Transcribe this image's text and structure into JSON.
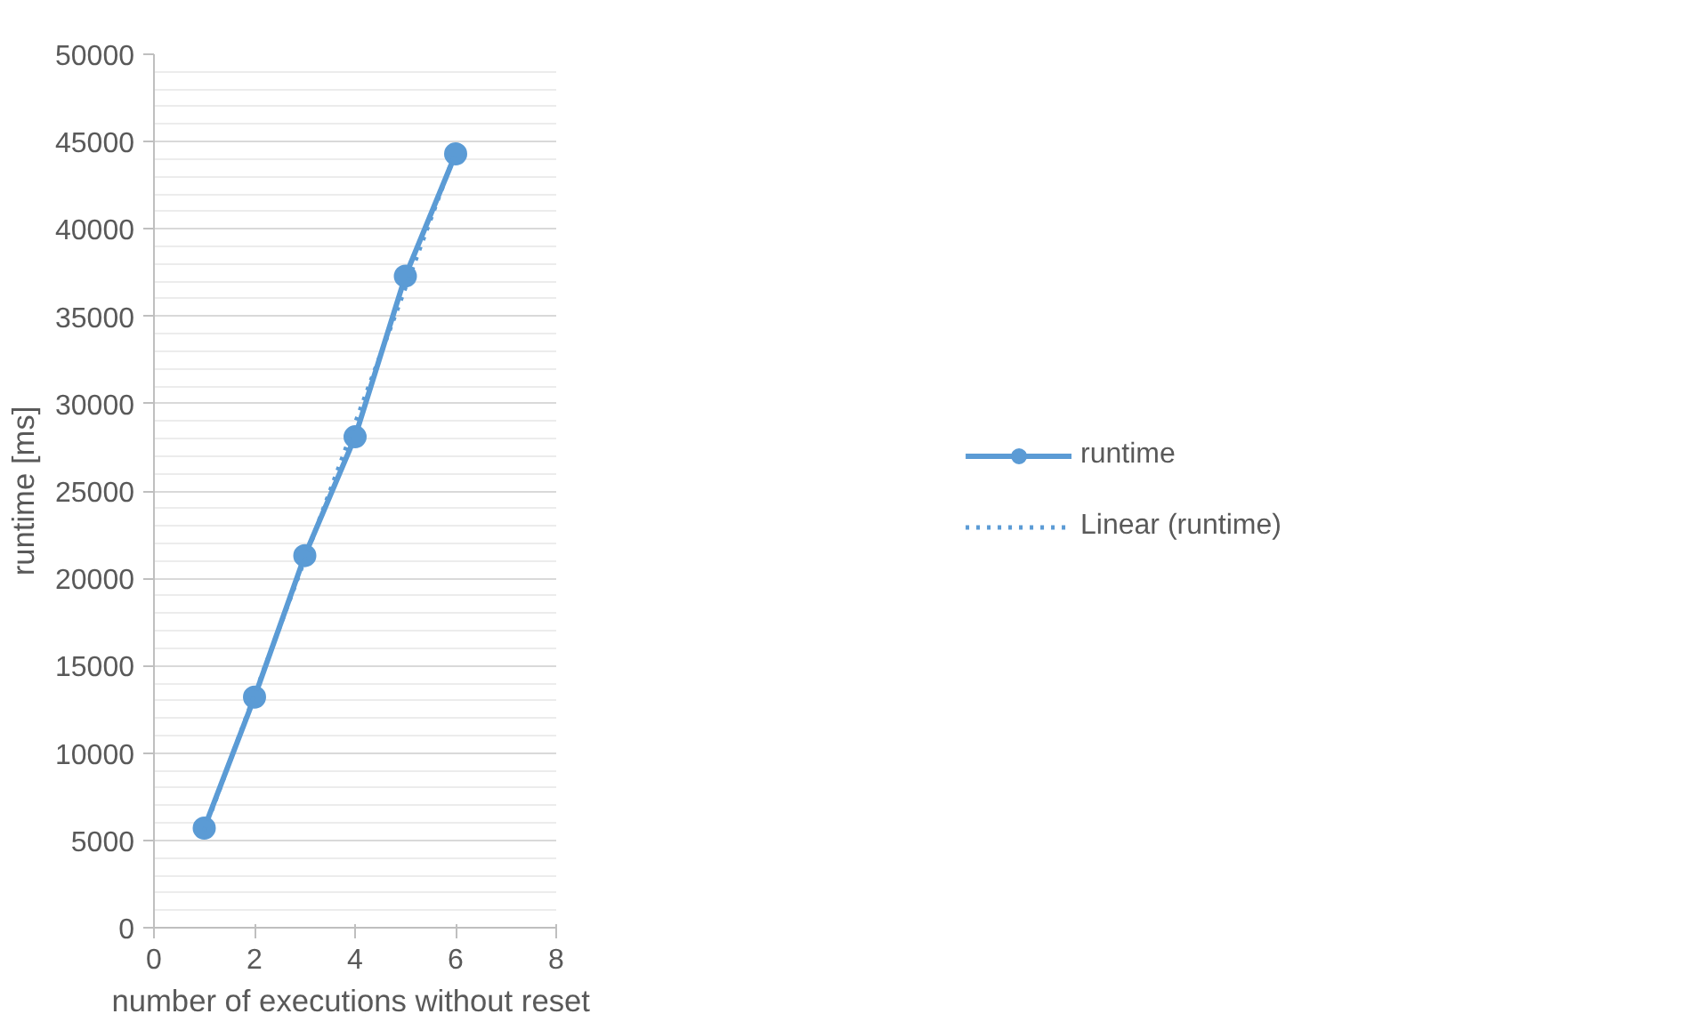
{
  "chart_data": {
    "type": "line",
    "xlabel": "number of executions  without reset",
    "ylabel": "runtime [ms]",
    "xlim": [
      0,
      8
    ],
    "xticks": [
      0,
      2,
      4,
      6,
      8
    ],
    "ylim": [
      0,
      50000
    ],
    "yticks": [
      0,
      5000,
      10000,
      15000,
      20000,
      25000,
      30000,
      35000,
      40000,
      45000,
      50000
    ],
    "grid": "y",
    "legend": "right",
    "series": [
      {
        "name": "runtime",
        "color": "#5b9bd5",
        "x": [
          1,
          2,
          3,
          4,
          5,
          6
        ],
        "values": [
          5700,
          13200,
          21300,
          28100,
          37300,
          44300
        ],
        "marker": "circle",
        "line_style": "solid"
      },
      {
        "name": "Linear (runtime)",
        "color": "#5b9bd5",
        "x": [
          1,
          6
        ],
        "values": [
          5550,
          44420
        ],
        "marker": "none",
        "line_style": "dotted"
      }
    ]
  }
}
